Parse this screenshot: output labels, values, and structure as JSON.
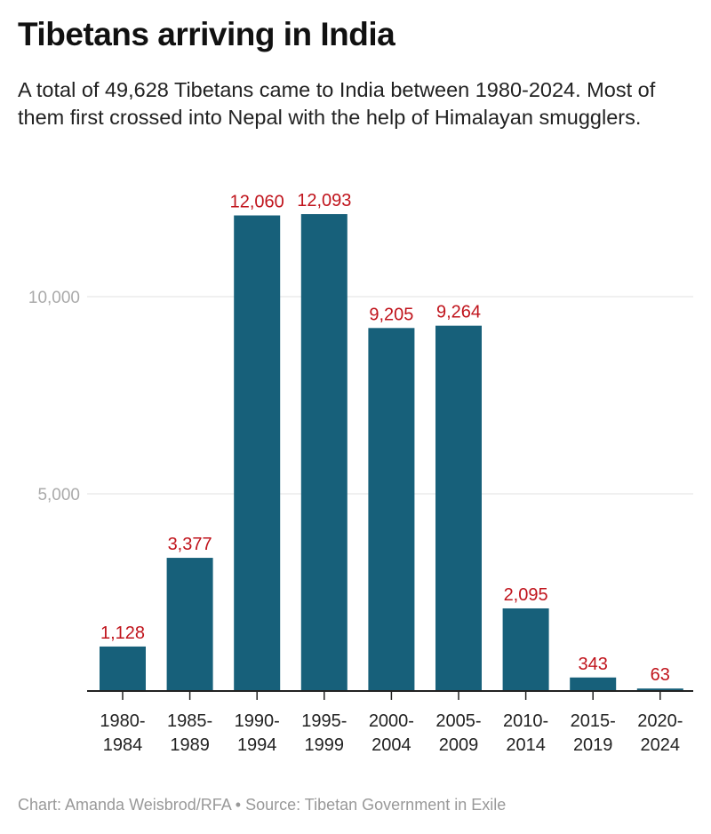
{
  "title": "Tibetans arriving in India",
  "subtitle": "A total of 49,628 Tibetans came to India between 1980-2024. Most of them first crossed into Nepal with the help of Himalayan smugglers.",
  "footer": "Chart: Amanda Weisbrod/RFA • Source: Tibetan Government in Exile",
  "chart_data": {
    "type": "bar",
    "categories": [
      [
        "1980-",
        "1984"
      ],
      [
        "1985-",
        "1989"
      ],
      [
        "1990-",
        "1994"
      ],
      [
        "1995-",
        "1999"
      ],
      [
        "2000-",
        "2004"
      ],
      [
        "2005-",
        "2009"
      ],
      [
        "2010-",
        "2014"
      ],
      [
        "2015-",
        "2019"
      ],
      [
        "2020-",
        "2024"
      ]
    ],
    "values": [
      1128,
      3377,
      12060,
      12093,
      9205,
      9264,
      2095,
      343,
      63
    ],
    "data_labels": [
      "1,128",
      "3,377",
      "12,060",
      "12,093",
      "9,205",
      "9,264",
      "2,095",
      "343",
      "63"
    ],
    "yticks": [
      5000,
      10000
    ],
    "ytick_labels": [
      "5,000",
      "10,000"
    ],
    "ylim": [
      0,
      12093
    ],
    "grid": true,
    "colors": {
      "bar": "#17607a",
      "label": "#c0141c",
      "tick_label": "#aaaaaa"
    }
  }
}
